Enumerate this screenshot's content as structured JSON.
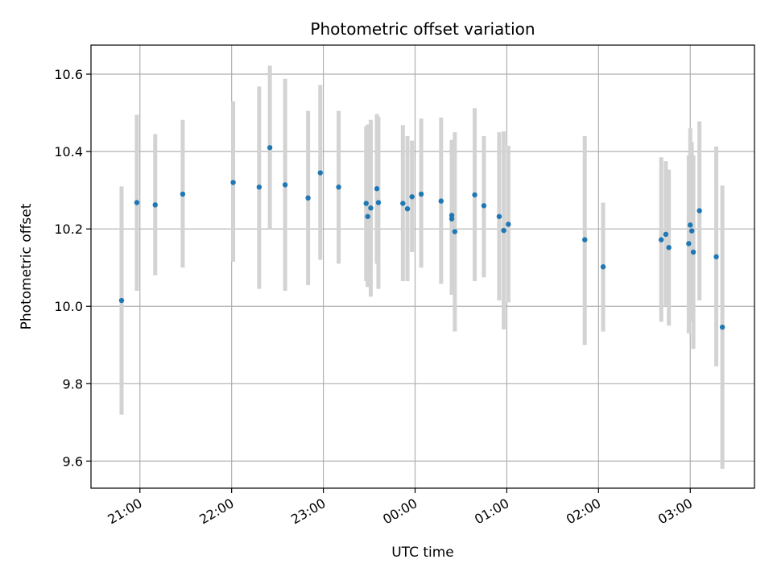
{
  "chart_data": {
    "type": "scatter",
    "title": "Photometric offset variation",
    "xlabel": "UTC time",
    "ylabel": "Photometric offset",
    "x_tick_labels": [
      "21:00",
      "22:00",
      "23:00",
      "00:00",
      "01:00",
      "02:00",
      "03:00"
    ],
    "y_tick_labels": [
      "9.6",
      "9.8",
      "10.0",
      "10.2",
      "10.4",
      "10.6"
    ],
    "xlim": [
      "20:28",
      "03:42"
    ],
    "ylim": [
      9.53,
      10.675
    ],
    "grid": true,
    "colors": {
      "point": "#1f77b4",
      "error_bar": "#d3d3d3",
      "grid": "#b0b0b0"
    },
    "points": [
      {
        "time": "20:48",
        "value": 10.015,
        "low": 9.72,
        "high": 10.31
      },
      {
        "time": "20:58",
        "value": 10.268,
        "low": 10.04,
        "high": 10.495
      },
      {
        "time": "21:10",
        "value": 10.262,
        "low": 10.08,
        "high": 10.445
      },
      {
        "time": "21:28",
        "value": 10.29,
        "low": 10.1,
        "high": 10.482
      },
      {
        "time": "22:01",
        "value": 10.32,
        "low": 10.115,
        "high": 10.53
      },
      {
        "time": "22:18",
        "value": 10.308,
        "low": 10.045,
        "high": 10.568
      },
      {
        "time": "22:25",
        "value": 10.41,
        "low": 10.2,
        "high": 10.622
      },
      {
        "time": "22:35",
        "value": 10.314,
        "low": 10.04,
        "high": 10.588
      },
      {
        "time": "22:50",
        "value": 10.28,
        "low": 10.055,
        "high": 10.505
      },
      {
        "time": "22:58",
        "value": 10.345,
        "low": 10.12,
        "high": 10.572
      },
      {
        "time": "23:10",
        "value": 10.308,
        "low": 10.11,
        "high": 10.505
      },
      {
        "time": "23:28",
        "value": 10.266,
        "low": 10.065,
        "high": 10.465
      },
      {
        "time": "23:29",
        "value": 10.232,
        "low": 10.05,
        "high": 10.47
      },
      {
        "time": "23:31",
        "value": 10.254,
        "low": 10.025,
        "high": 10.482
      },
      {
        "time": "23:35",
        "value": 10.304,
        "low": 10.11,
        "high": 10.497
      },
      {
        "time": "23:36",
        "value": 10.268,
        "low": 10.045,
        "high": 10.49
      },
      {
        "time": "23:52",
        "value": 10.266,
        "low": 10.065,
        "high": 10.468
      },
      {
        "time": "23:55",
        "value": 10.252,
        "low": 10.065,
        "high": 10.44
      },
      {
        "time": "23:58",
        "value": 10.283,
        "low": 10.14,
        "high": 10.428
      },
      {
        "time": "00:04",
        "value": 10.29,
        "low": 10.1,
        "high": 10.485
      },
      {
        "time": "00:17",
        "value": 10.272,
        "low": 10.058,
        "high": 10.488
      },
      {
        "time": "00:24",
        "value": 10.235,
        "low": 10.03,
        "high": 10.425
      },
      {
        "time": "00:24",
        "value": 10.226,
        "low": 10.03,
        "high": 10.43
      },
      {
        "time": "00:26",
        "value": 10.193,
        "low": 9.935,
        "high": 10.45
      },
      {
        "time": "00:39",
        "value": 10.288,
        "low": 10.065,
        "high": 10.512
      },
      {
        "time": "00:45",
        "value": 10.26,
        "low": 10.075,
        "high": 10.44
      },
      {
        "time": "00:55",
        "value": 10.232,
        "low": 10.015,
        "high": 10.45
      },
      {
        "time": "00:58",
        "value": 10.196,
        "low": 9.94,
        "high": 10.452
      },
      {
        "time": "01:01",
        "value": 10.212,
        "low": 10.01,
        "high": 10.415
      },
      {
        "time": "01:51",
        "value": 10.172,
        "low": 9.9,
        "high": 10.44
      },
      {
        "time": "02:03",
        "value": 10.102,
        "low": 9.935,
        "high": 10.268
      },
      {
        "time": "02:41",
        "value": 10.172,
        "low": 9.96,
        "high": 10.385
      },
      {
        "time": "02:44",
        "value": 10.186,
        "low": 10.0,
        "high": 10.375
      },
      {
        "time": "02:46",
        "value": 10.152,
        "low": 9.95,
        "high": 10.353
      },
      {
        "time": "02:59",
        "value": 10.162,
        "low": 9.93,
        "high": 10.39
      },
      {
        "time": "03:00",
        "value": 10.21,
        "low": 9.96,
        "high": 10.46
      },
      {
        "time": "03:01",
        "value": 10.195,
        "low": 9.97,
        "high": 10.425
      },
      {
        "time": "03:02",
        "value": 10.14,
        "low": 9.89,
        "high": 10.39
      },
      {
        "time": "03:06",
        "value": 10.247,
        "low": 10.015,
        "high": 10.478
      },
      {
        "time": "03:17",
        "value": 10.128,
        "low": 9.845,
        "high": 10.413
      },
      {
        "time": "03:21",
        "value": 9.946,
        "low": 9.58,
        "high": 10.312
      }
    ]
  }
}
